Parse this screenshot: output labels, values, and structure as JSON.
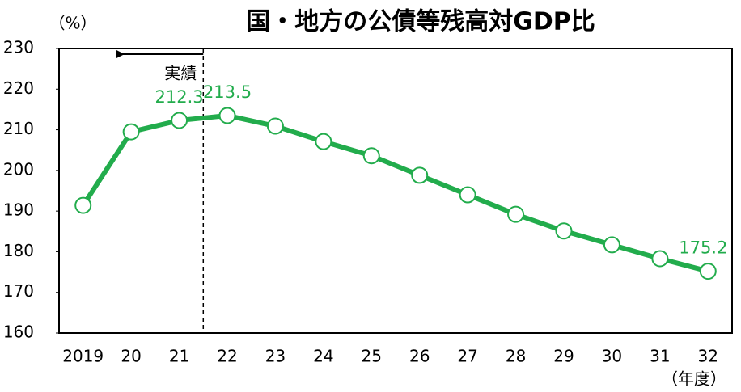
{
  "chart_data": {
    "type": "line",
    "title": "国・地方の公債等残高対GDP比",
    "y_axis_label": "（%）",
    "x_axis_label": "（年度）",
    "annotation": "実績",
    "categories": [
      "2019",
      "20",
      "21",
      "22",
      "23",
      "24",
      "25",
      "26",
      "27",
      "28",
      "29",
      "30",
      "31",
      "32"
    ],
    "series": [
      {
        "name": "公債等残高対GDP比",
        "color": "#22ac4c",
        "values": [
          191.4,
          209.5,
          212.3,
          213.5,
          210.9,
          207.1,
          203.6,
          198.8,
          194.0,
          189.2,
          185.1,
          181.7,
          178.3,
          175.2
        ],
        "value_labels": [
          null,
          null,
          "212.3",
          "213.5",
          null,
          null,
          null,
          null,
          null,
          null,
          null,
          null,
          null,
          "175.2"
        ]
      }
    ],
    "ylim": [
      160,
      230
    ],
    "yticks": [
      160,
      170,
      180,
      190,
      200,
      210,
      220,
      230
    ],
    "grid": false
  }
}
